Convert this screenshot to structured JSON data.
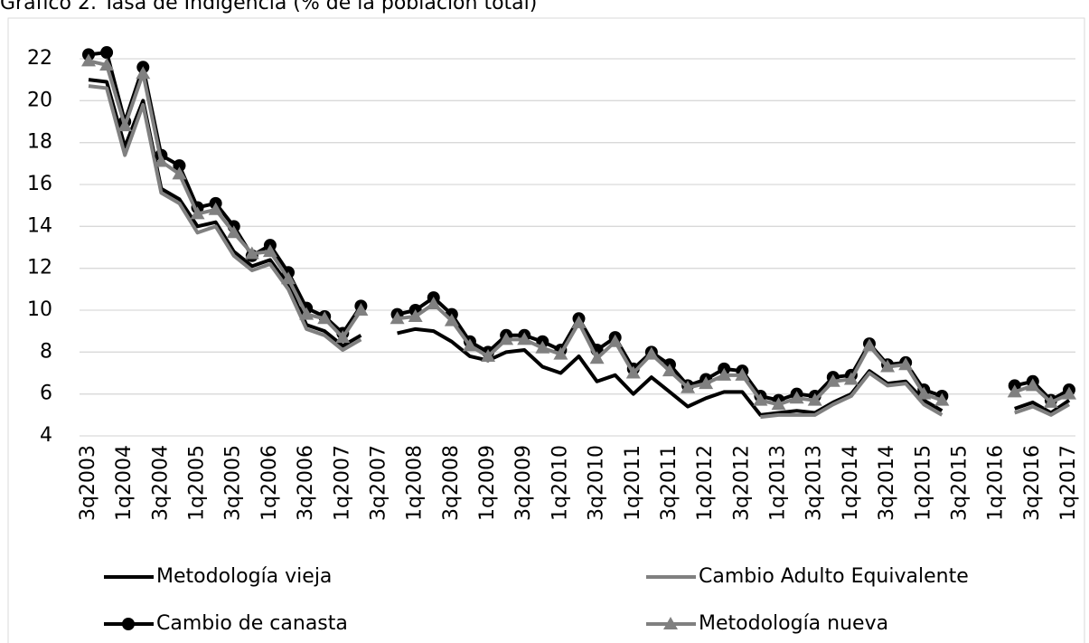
{
  "chart_data": {
    "type": "line",
    "title": "Gráfico 2. Tasa de Indigencia (% de la población total)",
    "categories": [
      "3q2003",
      null,
      "1q2004",
      null,
      "3q2004",
      null,
      "1q2005",
      null,
      "3q2005",
      null,
      "1q2006",
      null,
      "3q2006",
      null,
      "1q2007",
      null,
      "3q2007",
      null,
      "1q2008",
      null,
      "3q2008",
      null,
      "1q2009",
      null,
      "3q2009",
      null,
      "1q2010",
      null,
      "3q2010",
      null,
      "1q2011",
      null,
      "3q2011",
      null,
      "1q2012",
      null,
      "3q2012",
      null,
      "1q2013",
      null,
      "3q2013",
      null,
      "1q2014",
      null,
      "3q2014",
      null,
      "1q2015",
      null,
      "3q2015",
      null,
      "1q2016",
      null,
      "3q2016",
      null,
      "1q2017"
    ],
    "series": [
      {
        "name": "Metodología vieja",
        "color": "#000000",
        "values": [
          21.0,
          20.9,
          17.8,
          20.0,
          15.8,
          15.3,
          14.0,
          14.2,
          12.8,
          12.1,
          12.4,
          11.2,
          9.3,
          9.0,
          8.3,
          8.8,
          null,
          8.9,
          9.1,
          9.0,
          8.5,
          7.8,
          7.6,
          8.0,
          8.1,
          7.3,
          7.0,
          7.8,
          6.6,
          6.9,
          6.0,
          6.8,
          6.1,
          5.4,
          5.8,
          6.1,
          6.1,
          5.0,
          5.1,
          5.2,
          5.1,
          5.6,
          6.0,
          7.1,
          6.5,
          6.6,
          5.7,
          5.2,
          null,
          null,
          null,
          5.3,
          5.6,
          5.1,
          5.7
        ]
      },
      {
        "name": "Cambio Adulto Equivalente",
        "color": "#808080",
        "values": [
          20.7,
          20.6,
          17.4,
          19.8,
          15.6,
          15.1,
          13.7,
          14.0,
          12.6,
          11.9,
          12.2,
          11.0,
          9.1,
          8.8,
          8.1,
          8.6,
          null,
          null,
          null,
          null,
          null,
          null,
          null,
          null,
          null,
          null,
          null,
          null,
          null,
          null,
          null,
          null,
          null,
          null,
          null,
          null,
          null,
          4.9,
          5.0,
          5.0,
          5.0,
          5.5,
          5.9,
          7.0,
          6.4,
          6.5,
          5.5,
          5.0,
          null,
          null,
          null,
          5.1,
          5.4,
          5.0,
          5.5
        ]
      },
      {
        "name": "Cambio de canasta",
        "color": "#000000",
        "marker": "circle",
        "values": [
          22.2,
          22.3,
          19.0,
          21.6,
          17.4,
          16.9,
          14.9,
          15.1,
          14.0,
          12.6,
          13.1,
          11.8,
          10.1,
          9.7,
          8.9,
          10.2,
          null,
          9.8,
          10.0,
          10.6,
          9.8,
          8.5,
          8.0,
          8.8,
          8.8,
          8.5,
          8.1,
          9.6,
          8.1,
          8.7,
          7.2,
          8.0,
          7.4,
          6.4,
          6.7,
          7.2,
          7.1,
          5.9,
          5.7,
          6.0,
          5.9,
          6.8,
          6.9,
          8.4,
          7.4,
          7.5,
          6.2,
          5.9,
          null,
          null,
          null,
          6.4,
          6.6,
          5.7,
          6.2
        ]
      },
      {
        "name": "Metodología nueva",
        "color": "#808080",
        "marker": "triangle",
        "values": [
          21.9,
          21.7,
          18.8,
          21.3,
          17.1,
          16.5,
          14.6,
          14.8,
          13.7,
          12.7,
          12.8,
          11.5,
          9.8,
          9.6,
          8.7,
          10.0,
          null,
          9.6,
          9.7,
          10.3,
          9.5,
          8.3,
          7.8,
          8.6,
          8.6,
          8.2,
          7.9,
          9.4,
          7.7,
          8.5,
          7.0,
          7.9,
          7.1,
          6.3,
          6.5,
          6.9,
          6.9,
          5.7,
          5.5,
          5.8,
          5.7,
          6.6,
          6.7,
          8.3,
          7.3,
          7.4,
          6.0,
          5.7,
          null,
          null,
          null,
          6.1,
          6.4,
          5.6,
          6.0
        ]
      }
    ],
    "ylim": [
      4,
      22.4
    ],
    "yticks": [
      4,
      6,
      8,
      10,
      12,
      14,
      16,
      18,
      20,
      22
    ],
    "grid": true
  }
}
